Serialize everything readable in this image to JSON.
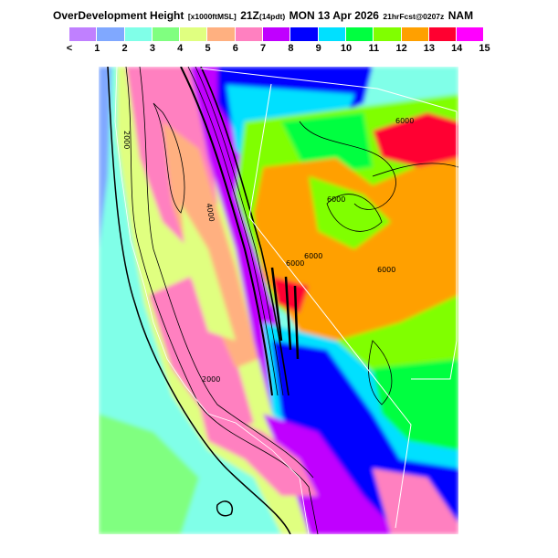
{
  "header": {
    "product": "OverDevelopment Height",
    "units": "[x1000ftMSL]",
    "valid_time": "21Z",
    "local_time": "(14pdt)",
    "date": "MON  13 Apr 2026",
    "forecast": "21hrFcst@0207z",
    "model": "NAM"
  },
  "legend": {
    "colors": [
      "#c080ff",
      "#80a8ff",
      "#80ffe8",
      "#80ff80",
      "#e0ff80",
      "#ffb080",
      "#ff80c0",
      "#c000ff",
      "#0000ff",
      "#00e0ff",
      "#00ff40",
      "#80ff00",
      "#ffa000",
      "#ff0030",
      "#ff00ff"
    ],
    "labels": [
      "<",
      "1",
      "2",
      "3",
      "4",
      "5",
      "6",
      "7",
      "8",
      "9",
      "10",
      "11",
      "12",
      "13",
      "14",
      "15"
    ]
  },
  "map": {
    "contour_labels": [
      "2000",
      "6000",
      "4000",
      "6000",
      "6000",
      "6000",
      "6000",
      "2000"
    ]
  }
}
